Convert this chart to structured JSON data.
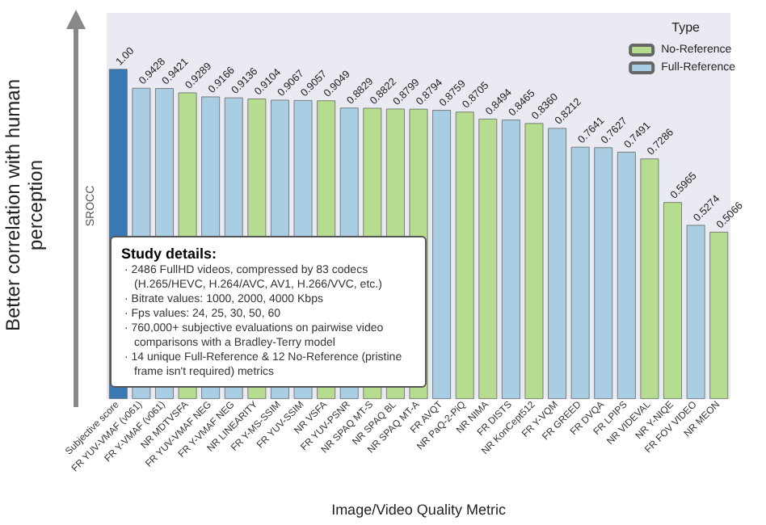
{
  "chart_data": {
    "type": "bar",
    "categories": [
      "Subjective score",
      "FR YUV-VMAF (v061)",
      "FR Y-VMAF (v061)",
      "NR MDTVSFA",
      "FR YUV-VMAF NEG",
      "FR Y-VMAF NEG",
      "NR LINEARITY",
      "FR Y-MS-SSIM",
      "FR YUV-SSIM",
      "NR VSFA",
      "FR YUV-PSNR",
      "NR SPAQ MT-S",
      "NR SPAQ BL",
      "NR SPAQ MT-A",
      "FR AVQT",
      "NR PaQ-2-PiQ",
      "NR NIMA",
      "FR DISTS",
      "NR KonCept512",
      "FR Y-VQM",
      "FR GREED",
      "FR DVQA",
      "FR LPIPS",
      "NR VIDEVAL",
      "NR Y-NIQE",
      "FR FOV VIDEO",
      "NR MEON"
    ],
    "series": [
      {
        "color": "#3a78b4",
        "values": [
          1.0,
          null,
          null,
          null,
          null,
          null,
          null,
          null,
          null,
          null,
          null,
          null,
          null,
          null,
          null,
          null,
          null,
          null,
          null,
          null,
          null,
          null,
          null,
          null,
          null,
          null,
          null
        ],
        "value_labels": [
          "1.00",
          null,
          null,
          null,
          null,
          null,
          null,
          null,
          null,
          null,
          null,
          null,
          null,
          null,
          null,
          null,
          null,
          null,
          null,
          null,
          null,
          null,
          null,
          null,
          null,
          null,
          null
        ]
      },
      {
        "name": "No-Reference",
        "color": "#b5dc8f",
        "values": [
          null,
          null,
          null,
          0.9289,
          null,
          null,
          0.9104,
          null,
          null,
          0.9049,
          null,
          0.8822,
          0.8799,
          0.8794,
          null,
          0.8705,
          0.8494,
          null,
          0.836,
          null,
          null,
          null,
          null,
          0.7286,
          0.5965,
          null,
          0.5066
        ],
        "value_labels": [
          null,
          null,
          null,
          "0.9289",
          null,
          null,
          "0.9104",
          null,
          null,
          "0.9049",
          null,
          "0.8822",
          "0.8799",
          "0.8794",
          null,
          "0.8705",
          "0.8494",
          null,
          "0.8360",
          null,
          null,
          null,
          null,
          "0.7286",
          "0.5965",
          null,
          "0.5066"
        ]
      },
      {
        "name": "Full-Reference",
        "color": "#a9cde3",
        "values": [
          null,
          0.9428,
          0.9421,
          null,
          0.9166,
          0.9136,
          null,
          0.9067,
          0.9057,
          null,
          0.8829,
          null,
          null,
          null,
          0.8759,
          null,
          null,
          0.8465,
          null,
          0.8212,
          0.7641,
          0.7627,
          0.7491,
          null,
          null,
          0.5274,
          null
        ],
        "value_labels": [
          null,
          "0.9428",
          "0.9421",
          null,
          "0.9166",
          "0.9136",
          null,
          "0.9067",
          "0.9057",
          null,
          "0.8829",
          null,
          null,
          null,
          "0.8759",
          null,
          null,
          "0.8465",
          null,
          "0.8212",
          "0.7641",
          "0.7627",
          "0.7491",
          null,
          null,
          "0.5274",
          null
        ]
      }
    ],
    "xlabel": "Image/Video Quality Metric",
    "ylabel": "SROCC",
    "legend_title": "Type",
    "legend": "top right",
    "tick_labels": "x",
    "annotations": [
      "Better correlation with human perception",
      "Study details:",
      "· 2486 FullHD videos, compressed by 83 codecs (H.265/HEVC, H.264/AVC, AV1, H.266/VVC, etc.)",
      "· Bitrate values: 1000, 2000, 4000 Kbps",
      "· Fps values: 24, 25, 30, 50, 60",
      "· 760,000+ subjective evaluations on pairwise video comparisons with a Bradley-Terry model",
      "· 14 unique Full-Reference & 12 No-Reference (pristine frame isn't required) metrics"
    ]
  }
}
